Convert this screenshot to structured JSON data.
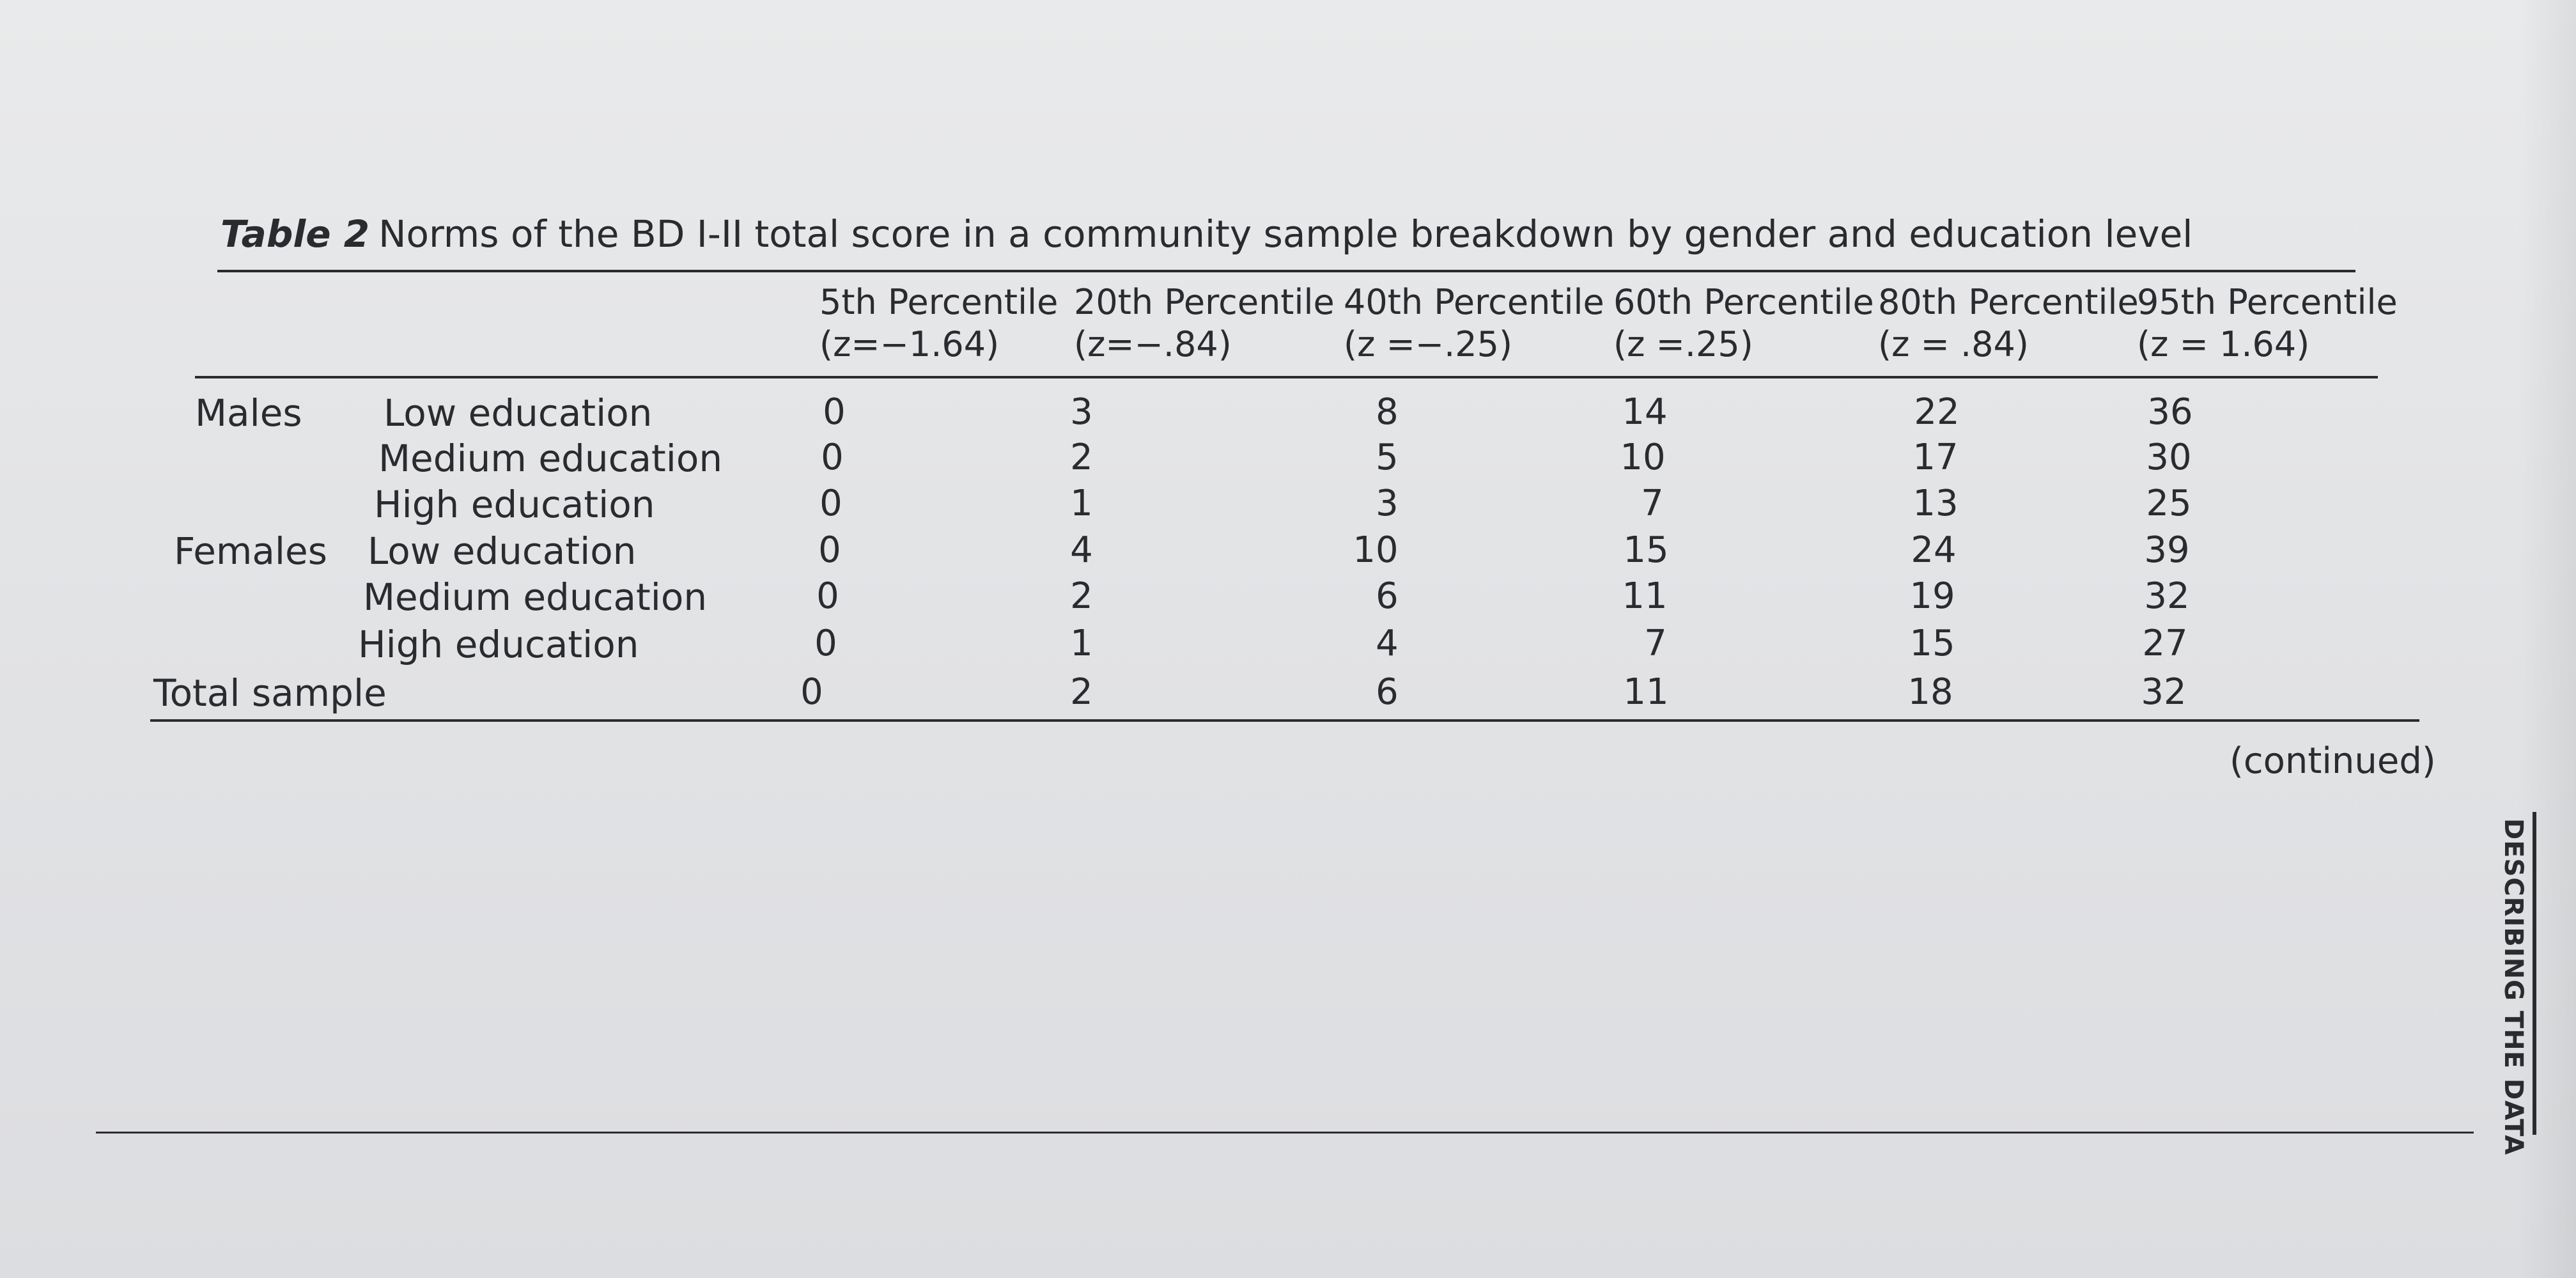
{
  "table": {
    "caption_label": "Table 2",
    "caption_text": "Norms of the BD I-II total score in a community sample breakdown by gender and education level",
    "columns": [
      {
        "label": "5th Percentile",
        "z": "(z=−1.64)"
      },
      {
        "label": "20th Percentile",
        "z": "(z=−.84)"
      },
      {
        "label": "40th Percentile",
        "z": "(z =−.25)"
      },
      {
        "label": "60th Percentile",
        "z": "(z =.25)"
      },
      {
        "label": "80th Percentile",
        "z": "(z = .84)"
      },
      {
        "label": "95th Percentile",
        "z": "(z = 1.64)"
      }
    ],
    "groups": [
      "Males",
      "Females"
    ],
    "rows": [
      {
        "group": "Males",
        "label": "Low education",
        "values": [
          "0",
          "3",
          "8",
          "14",
          "22",
          "36"
        ]
      },
      {
        "group": "",
        "label": "Medium education",
        "values": [
          "0",
          "2",
          "5",
          "10",
          "17",
          "30"
        ]
      },
      {
        "group": "",
        "label": "High education",
        "values": [
          "0",
          "1",
          "3",
          "7",
          "13",
          "25"
        ]
      },
      {
        "group": "Females",
        "label": "Low education",
        "values": [
          "0",
          "4",
          "10",
          "15",
          "24",
          "39"
        ]
      },
      {
        "group": "",
        "label": "Medium education",
        "values": [
          "0",
          "2",
          "6",
          "11",
          "19",
          "32"
        ]
      },
      {
        "group": "",
        "label": "High education",
        "values": [
          "0",
          "1",
          "4",
          "7",
          "15",
          "27"
        ]
      },
      {
        "group": "",
        "label": "Total sample",
        "values": [
          "0",
          "2",
          "6",
          "11",
          "18",
          "32"
        ]
      }
    ],
    "continued": "(continued)"
  },
  "side_tab": "DESCRIBING THE DATA"
}
